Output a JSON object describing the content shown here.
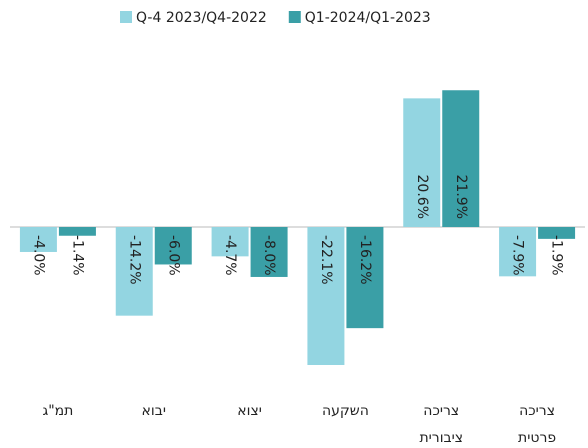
{
  "chart_data": {
    "type": "bar",
    "categories": [
      "תמ\"ג",
      "יבוא",
      "יצוא",
      "השקעה",
      "צריכה ציבורית",
      "צריכה פרטית"
    ],
    "series": [
      {
        "name": "Q-4 2023/Q4-2022",
        "color": "#93d5e1",
        "values": [
          -4.0,
          -14.2,
          -4.7,
          -22.1,
          20.6,
          -7.9
        ],
        "value_labels": [
          "-4.0%",
          "-14.2%",
          "-4.7%",
          "-22.1%",
          "20.6%",
          "-7.9%"
        ]
      },
      {
        "name": "Q1-2024/Q1-2023",
        "color": "#3a9fa6",
        "values": [
          -1.4,
          -6.0,
          -8.0,
          -16.2,
          21.9,
          -1.9
        ],
        "value_labels": [
          "-1.4%",
          "-6.0%",
          "-8.0%",
          "-16.2%",
          "21.9%",
          "-1.9%"
        ]
      }
    ],
    "legend": "top"
  }
}
